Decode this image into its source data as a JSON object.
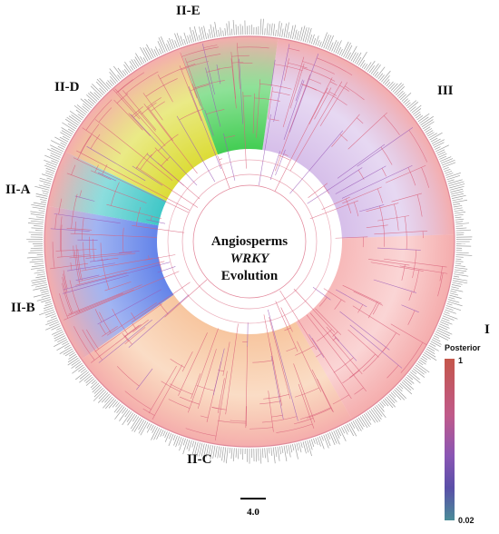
{
  "center_title": {
    "line1": "Angiosperms",
    "line2": "WRKY",
    "line3": "Evolution"
  },
  "clades": {
    "I": "I",
    "II_A": "II-A",
    "II_B": "II-B",
    "II_C": "II-C",
    "II_D": "II-D",
    "II_E": "II-E",
    "III": "III"
  },
  "legend": {
    "title": "Posterior",
    "max": 1,
    "min": 0.02
  },
  "scale_bar": {
    "label": "4.0"
  }
}
